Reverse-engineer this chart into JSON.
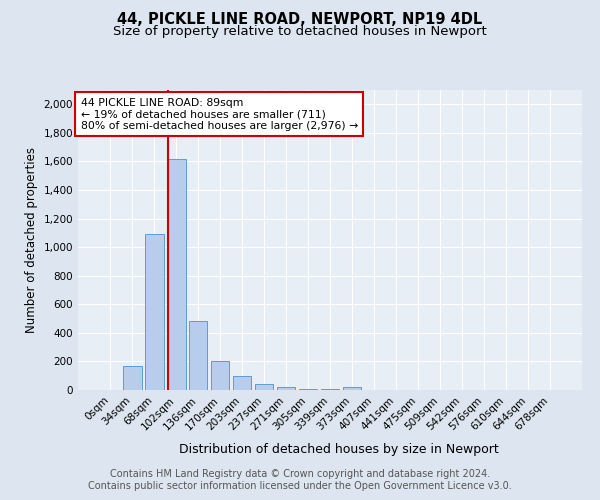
{
  "title1": "44, PICKLE LINE ROAD, NEWPORT, NP19 4DL",
  "title2": "Size of property relative to detached houses in Newport",
  "xlabel": "Distribution of detached houses by size in Newport",
  "ylabel": "Number of detached properties",
  "footnote1": "Contains HM Land Registry data © Crown copyright and database right 2024.",
  "footnote2": "Contains public sector information licensed under the Open Government Licence v3.0.",
  "bar_labels": [
    "0sqm",
    "34sqm",
    "68sqm",
    "102sqm",
    "136sqm",
    "170sqm",
    "203sqm",
    "237sqm",
    "271sqm",
    "305sqm",
    "339sqm",
    "373sqm",
    "407sqm",
    "441sqm",
    "475sqm",
    "509sqm",
    "542sqm",
    "576sqm",
    "610sqm",
    "644sqm",
    "678sqm"
  ],
  "bar_values": [
    0,
    170,
    1090,
    1620,
    480,
    200,
    100,
    40,
    20,
    10,
    5,
    20,
    0,
    0,
    0,
    0,
    0,
    0,
    0,
    0,
    0
  ],
  "bar_color": "#b8cceb",
  "bar_edge_color": "#5b9bd5",
  "property_line_bin": 2.617,
  "annotation_text": "44 PICKLE LINE ROAD: 89sqm\n← 19% of detached houses are smaller (711)\n80% of semi-detached houses are larger (2,976) →",
  "annotation_box_color": "#ffffff",
  "annotation_box_edge": "#cc0000",
  "vline_color": "#cc0000",
  "ylim": [
    0,
    2100
  ],
  "yticks": [
    0,
    200,
    400,
    600,
    800,
    1000,
    1200,
    1400,
    1600,
    1800,
    2000
  ],
  "bg_color": "#dde6f0",
  "plot_bg_color": "#e8eef6",
  "grid_color": "#ffffff",
  "title1_fontsize": 10.5,
  "title2_fontsize": 9.5,
  "xlabel_fontsize": 9,
  "ylabel_fontsize": 8.5,
  "tick_fontsize": 7.5,
  "footnote_fontsize": 7,
  "annot_fontsize": 7.8
}
